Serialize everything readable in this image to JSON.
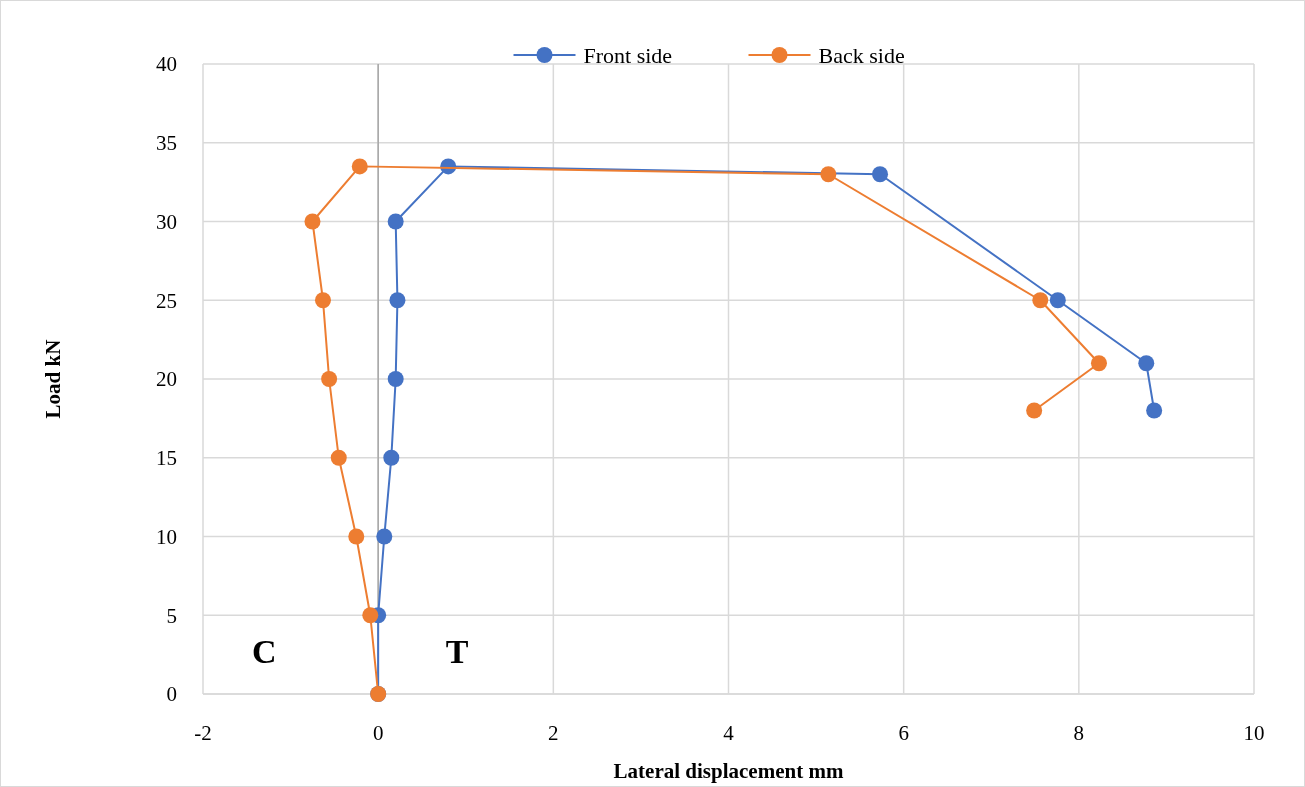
{
  "chart_data": {
    "type": "line",
    "xlabel": "Lateral displacement mm",
    "ylabel": "Load kN",
    "xlim": [
      -2,
      10
    ],
    "xticks": [
      -2,
      0,
      2,
      4,
      6,
      8,
      10
    ],
    "ylim": [
      0,
      40
    ],
    "yticks": [
      0,
      5,
      10,
      15,
      20,
      25,
      30,
      35,
      40
    ],
    "grid": true,
    "legend": "top",
    "marker": "circle",
    "line_style": "solid",
    "annotations": [
      "C",
      "T"
    ],
    "series": [
      {
        "name": "Front side",
        "color": "#4472c4",
        "x": [
          0,
          0,
          0.07,
          0.15,
          0.2,
          0.22,
          0.2,
          0.8,
          5.73,
          7.76,
          8.77,
          8.86
        ],
        "values": [
          0,
          5,
          10,
          15,
          20,
          25,
          30,
          33.5,
          33,
          25,
          21,
          18
        ]
      },
      {
        "name": "Back side",
        "color": "#ed7d31",
        "x": [
          0,
          -0.09,
          -0.25,
          -0.45,
          -0.56,
          -0.63,
          -0.75,
          -0.21,
          5.14,
          7.56,
          8.23,
          7.49
        ],
        "values": [
          0,
          5,
          10,
          15,
          20,
          25,
          30,
          33.5,
          33,
          25,
          21,
          18
        ]
      }
    ]
  }
}
